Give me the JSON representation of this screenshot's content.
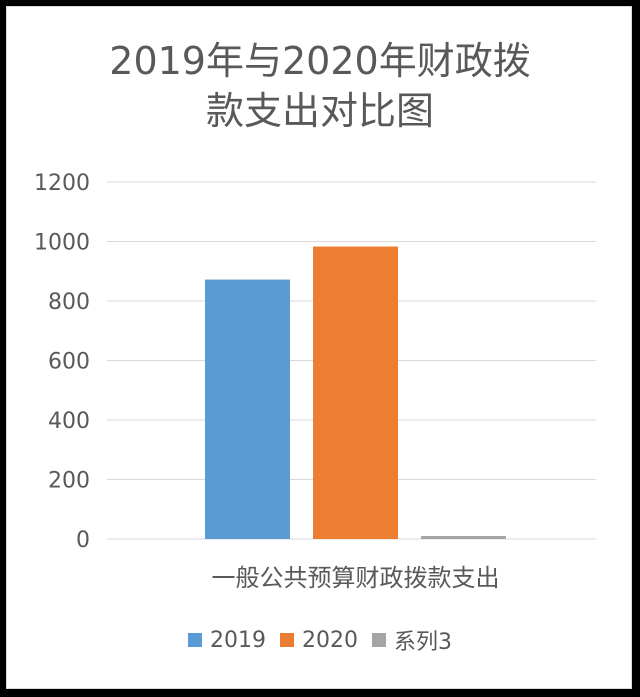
{
  "chart_data": {
    "type": "bar",
    "title_lines": [
      "2019年与2020年财政拨",
      "款支出对比图"
    ],
    "categories": [
      "一般公共预算财政拨款支出"
    ],
    "series": [
      {
        "name": "2019",
        "values": [
          872
        ],
        "color": "#5b9bd5"
      },
      {
        "name": "2020",
        "values": [
          983
        ],
        "color": "#ed7d31"
      },
      {
        "name": "系列3",
        "values": [
          10
        ],
        "color": "#a5a5a5"
      }
    ],
    "ylim": [
      0,
      1200
    ],
    "yticks": [
      "0",
      "200",
      "400",
      "600",
      "800",
      "1000",
      "1200"
    ],
    "grid": true,
    "legend_position": "bottom"
  }
}
